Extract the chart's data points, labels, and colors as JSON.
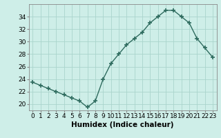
{
  "x": [
    0,
    1,
    2,
    3,
    4,
    5,
    6,
    7,
    8,
    9,
    10,
    11,
    12,
    13,
    14,
    15,
    16,
    17,
    18,
    19,
    20,
    21,
    22,
    23
  ],
  "y": [
    23.5,
    23.0,
    22.5,
    22.0,
    21.5,
    21.0,
    20.5,
    19.5,
    20.5,
    24.0,
    26.5,
    28.0,
    29.5,
    30.5,
    31.5,
    33.0,
    34.0,
    35.0,
    35.0,
    34.0,
    33.0,
    30.5,
    29.0,
    27.5
  ],
  "line_color": "#2e6b5e",
  "marker": "+",
  "marker_size": 4,
  "marker_lw": 1.2,
  "bg_color": "#ceeee8",
  "grid_color": "#aad4cc",
  "xlabel": "Humidex (Indice chaleur)",
  "ylim": [
    19,
    36
  ],
  "xlim": [
    -0.5,
    23.5
  ],
  "yticks": [
    20,
    22,
    24,
    26,
    28,
    30,
    32,
    34
  ],
  "xticks": [
    0,
    1,
    2,
    3,
    4,
    5,
    6,
    7,
    8,
    9,
    10,
    11,
    12,
    13,
    14,
    15,
    16,
    17,
    18,
    19,
    20,
    21,
    22,
    23
  ],
  "label_fontsize": 7.5,
  "tick_fontsize": 6.5
}
